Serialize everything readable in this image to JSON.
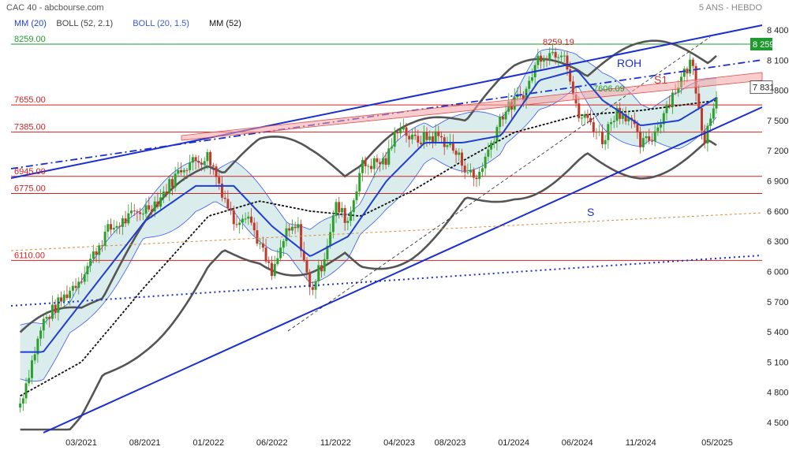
{
  "header": {
    "source": "CAC 40 - abcbourse.com",
    "timeframe": "5 ANS - HEBDO"
  },
  "legend": [
    {
      "label": "MM (20)",
      "color": "#1f3fd1"
    },
    {
      "label": "BOLL (52, 2.1)",
      "color": "#444444"
    },
    {
      "label": "BOLL (20, 1.5)",
      "color": "#3a5ae8"
    },
    {
      "label": "MM (52)",
      "color": "#111111"
    }
  ],
  "annotations": {
    "roh": "ROH",
    "s1": "S1",
    "s": "S",
    "high_label": "8259.19",
    "mid_label": "7606.09"
  },
  "colors": {
    "up_candle": "#2ca02c",
    "down_candle": "#c0392b",
    "mm20": "#1f3fd1",
    "mm52": "#111111",
    "boll52": "#555555",
    "boll20_fill": "#cfe6e6",
    "boll20_line": "#3a5ae8",
    "h_level": "#d42020",
    "trend": "#1a2fd0",
    "resistance_band": "#f4a4a4",
    "last_price_bg": "#ffffff",
    "top_level_bg": "#1f9a2e"
  },
  "chart_data": {
    "type": "candlestick",
    "title": "CAC 40",
    "timeframe": "weekly, 5 years",
    "x_tick_labels": [
      "03/2021",
      "08/2021",
      "01/2022",
      "06/2022",
      "11/2022",
      "04/2023",
      "08/2023",
      "01/2024",
      "06/2024",
      "11/2024",
      "05/2025"
    ],
    "y_tick_labels": [
      "8 400",
      "8 100",
      "7 800",
      "7 500",
      "7 200",
      "6 900",
      "6 600",
      "6 300",
      "6 000",
      "5 700",
      "5 400",
      "5 100",
      "4 800",
      "4 500"
    ],
    "y_ticks": [
      8400,
      8100,
      7800,
      7500,
      7200,
      6900,
      6600,
      6300,
      6000,
      5700,
      5400,
      5100,
      4800,
      4500
    ],
    "ylim": [
      4420,
      8530
    ],
    "x_range": [
      "2020-10",
      "2025-07"
    ],
    "y_scale": "linear",
    "grid": false,
    "last_price": {
      "value": 7831,
      "label": "7 831"
    },
    "top_level": {
      "value": 8259,
      "label": "8 259"
    },
    "horizontal_levels": [
      {
        "value": 8259.0,
        "label": "8259.00",
        "color": "green"
      },
      {
        "value": 7655.0,
        "label": "7655.00",
        "color": "red"
      },
      {
        "value": 7385.0,
        "label": "7385.00",
        "color": "red"
      },
      {
        "value": 6945.0,
        "label": "6945.00",
        "color": "red"
      },
      {
        "value": 6775.0,
        "label": "6775.00",
        "color": "red"
      },
      {
        "value": 6110.0,
        "label": "6110.00",
        "color": "red"
      }
    ],
    "weekly_close_path": [
      [
        "2020-10",
        4600
      ],
      [
        "2020-12",
        5500
      ],
      [
        "2021-03",
        5950
      ],
      [
        "2021-05",
        6400
      ],
      [
        "2021-07",
        6550
      ],
      [
        "2021-09",
        6700
      ],
      [
        "2021-11",
        7050
      ],
      [
        "2022-01",
        7150
      ],
      [
        "2022-03",
        6500
      ],
      [
        "2022-04",
        6600
      ],
      [
        "2022-06",
        5950
      ],
      [
        "2022-07",
        6350
      ],
      [
        "2022-08",
        6450
      ],
      [
        "2022-09",
        5800
      ],
      [
        "2022-10",
        6100
      ],
      [
        "2022-11",
        6650
      ],
      [
        "2022-12",
        6500
      ],
      [
        "2023-01",
        7050
      ],
      [
        "2023-03",
        7100
      ],
      [
        "2023-04",
        7480
      ],
      [
        "2023-05",
        7300
      ],
      [
        "2023-07",
        7350
      ],
      [
        "2023-08",
        7250
      ],
      [
        "2023-10",
        6900
      ],
      [
        "2023-11",
        7200
      ],
      [
        "2023-12",
        7550
      ],
      [
        "2024-02",
        7800
      ],
      [
        "2024-03",
        8150
      ],
      [
        "2024-05",
        8200
      ],
      [
        "2024-06",
        7550
      ],
      [
        "2024-07",
        7500
      ],
      [
        "2024-08",
        7300
      ],
      [
        "2024-09",
        7600
      ],
      [
        "2024-10",
        7550
      ],
      [
        "2024-11",
        7250
      ],
      [
        "2024-12",
        7350
      ],
      [
        "2025-01",
        7650
      ],
      [
        "2025-03",
        8100
      ],
      [
        "2025-04",
        7300
      ],
      [
        "2025-05",
        7830
      ]
    ],
    "series": [
      {
        "name": "MM (20)",
        "values": [
          [
            "2020-12",
            5200
          ],
          [
            "2021-04",
            5850
          ],
          [
            "2021-08",
            6500
          ],
          [
            "2021-12",
            6850
          ],
          [
            "2022-03",
            6850
          ],
          [
            "2022-06",
            6450
          ],
          [
            "2022-09",
            6150
          ],
          [
            "2022-12",
            6350
          ],
          [
            "2023-03",
            6900
          ],
          [
            "2023-06",
            7280
          ],
          [
            "2023-09",
            7280
          ],
          [
            "2023-12",
            7350
          ],
          [
            "2024-03",
            7900
          ],
          [
            "2024-06",
            8000
          ],
          [
            "2024-08",
            7700
          ],
          [
            "2024-11",
            7450
          ],
          [
            "2025-02",
            7500
          ],
          [
            "2025-05",
            7730
          ]
        ]
      },
      {
        "name": "MM (52)",
        "values": [
          [
            "2020-10",
            4750
          ],
          [
            "2021-03",
            5100
          ],
          [
            "2021-08",
            5850
          ],
          [
            "2022-01",
            6550
          ],
          [
            "2022-05",
            6700
          ],
          [
            "2022-09",
            6600
          ],
          [
            "2023-01",
            6550
          ],
          [
            "2023-05",
            6800
          ],
          [
            "2023-09",
            7100
          ],
          [
            "2024-01",
            7380
          ],
          [
            "2024-06",
            7550
          ],
          [
            "2024-11",
            7600
          ],
          [
            "2025-05",
            7700
          ]
        ]
      }
    ]
  }
}
